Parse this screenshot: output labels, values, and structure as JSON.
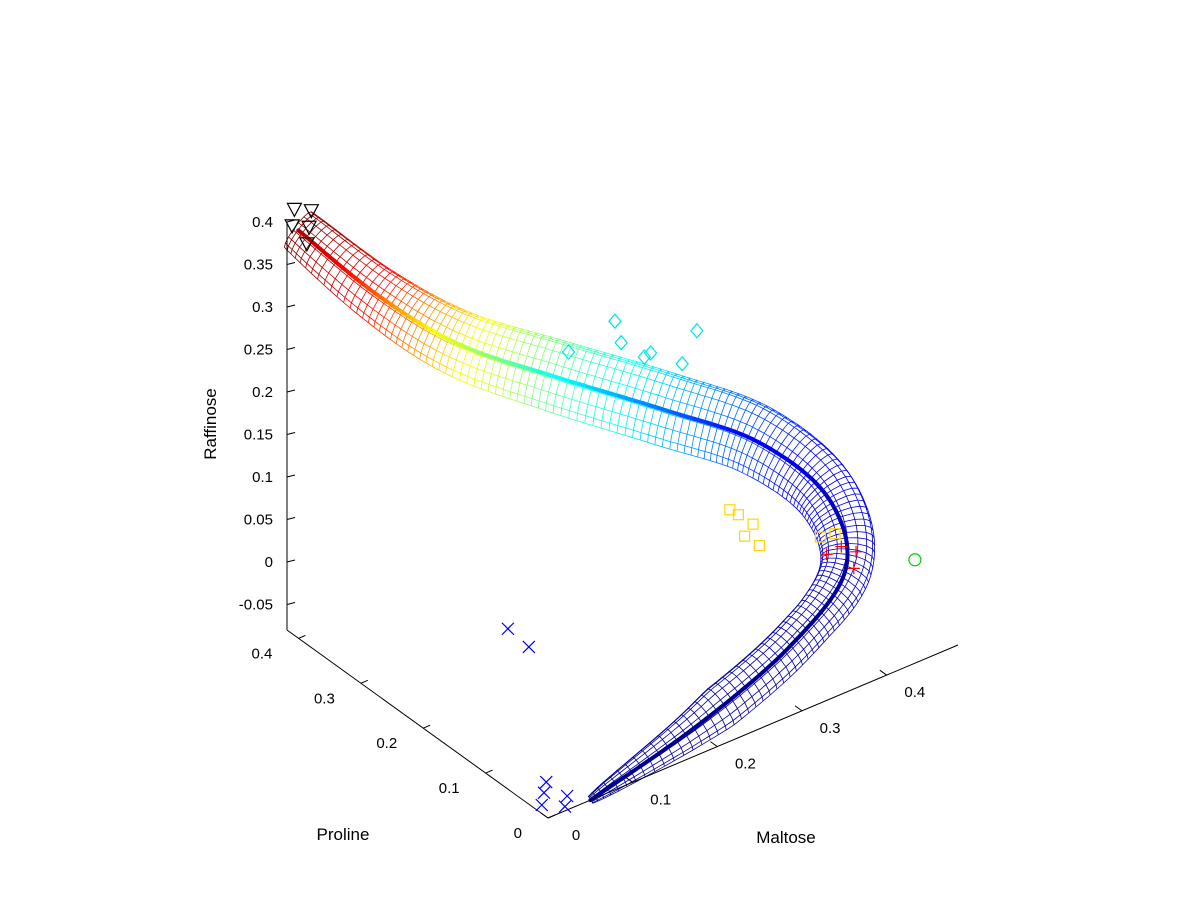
{
  "chart_data": {
    "type": "scatter",
    "subtype": "3d-scatter-with-fitted-surface",
    "title": "",
    "xlabel": "Maltose",
    "ylabel": "Proline",
    "zlabel": "Raffinose",
    "xlim": [
      0,
      0.48
    ],
    "ylim": [
      0,
      0.42
    ],
    "zlim": [
      -0.08,
      0.4
    ],
    "x_ticks": [
      "0",
      "0.1",
      "0.2",
      "0.3",
      "0.4"
    ],
    "y_ticks": [
      "0",
      "0.1",
      "0.2",
      "0.3",
      "0.4"
    ],
    "z_ticks": [
      "-0.05",
      "0",
      "0.05",
      "0.1",
      "0.15",
      "0.2",
      "0.25",
      "0.3",
      "0.35",
      "0.4"
    ],
    "z_tick_values": [
      -0.05,
      0,
      0.05,
      0.1,
      0.15,
      0.2,
      0.25,
      0.3,
      0.35,
      0.4
    ],
    "grid": false,
    "legend": "none",
    "surface": {
      "description": "wireframe tube colored by raffinose (jet colormap)",
      "colormap": [
        "#00008f",
        "#0000ff",
        "#00ffff",
        "#ffff00",
        "#ff0000",
        "#800000"
      ],
      "centerline": [
        {
          "x": 0.0,
          "y": 0.4,
          "z": 0.4
        },
        {
          "x": 0.08,
          "y": 0.38,
          "z": 0.3
        },
        {
          "x": 0.16,
          "y": 0.36,
          "z": 0.22
        },
        {
          "x": 0.26,
          "y": 0.34,
          "z": 0.15
        },
        {
          "x": 0.36,
          "y": 0.3,
          "z": 0.09
        },
        {
          "x": 0.44,
          "y": 0.26,
          "z": 0.04
        },
        {
          "x": 0.47,
          "y": 0.19,
          "z": 0.0
        },
        {
          "x": 0.44,
          "y": 0.12,
          "z": -0.035
        },
        {
          "x": 0.34,
          "y": 0.07,
          "z": -0.055
        },
        {
          "x": 0.2,
          "y": 0.03,
          "z": -0.07
        },
        {
          "x": 0.05,
          "y": 0.0,
          "z": -0.08
        }
      ]
    },
    "series": [
      {
        "marker": "x",
        "color": "#0000ff",
        "points": [
          {
            "x": 0.0,
            "y": 0.01,
            "z": -0.07
          },
          {
            "x": 0.02,
            "y": 0.0,
            "z": -0.075
          },
          {
            "x": 0.01,
            "y": 0.02,
            "z": -0.065
          },
          {
            "x": 0.03,
            "y": 0.01,
            "z": -0.072
          },
          {
            "x": 0.02,
            "y": 0.03,
            "z": -0.062
          },
          {
            "x": 0.1,
            "y": 0.2,
            "z": -0.005
          },
          {
            "x": 0.11,
            "y": 0.18,
            "z": -0.02
          }
        ]
      },
      {
        "marker": "o",
        "color": "#00cc00",
        "points": [
          {
            "x": 0.47,
            "y": 0.05,
            "z": 0.0
          }
        ]
      },
      {
        "marker": "+",
        "color": "#ff0000",
        "points": [
          {
            "x": 0.42,
            "y": 0.1,
            "z": 0.01
          },
          {
            "x": 0.41,
            "y": 0.11,
            "z": 0.0
          },
          {
            "x": 0.43,
            "y": 0.09,
            "z": 0.005
          },
          {
            "x": 0.42,
            "y": 0.08,
            "z": -0.005
          }
        ]
      },
      {
        "marker": "s",
        "color": "#ffd700",
        "points": [
          {
            "x": 0.34,
            "y": 0.17,
            "z": 0.05
          },
          {
            "x": 0.35,
            "y": 0.17,
            "z": 0.04
          },
          {
            "x": 0.36,
            "y": 0.16,
            "z": 0.03
          },
          {
            "x": 0.35,
            "y": 0.16,
            "z": 0.02
          },
          {
            "x": 0.36,
            "y": 0.15,
            "z": 0.01
          },
          {
            "x": 0.41,
            "y": 0.12,
            "z": 0.015
          },
          {
            "x": 0.42,
            "y": 0.11,
            "z": 0.02
          }
        ]
      },
      {
        "marker": "d",
        "color": "#00e5e5",
        "points": [
          {
            "x": 0.32,
            "y": 0.28,
            "z": 0.18
          },
          {
            "x": 0.35,
            "y": 0.26,
            "z": 0.17
          },
          {
            "x": 0.3,
            "y": 0.3,
            "z": 0.22
          },
          {
            "x": 0.3,
            "y": 0.29,
            "z": 0.2
          },
          {
            "x": 0.36,
            "y": 0.25,
            "z": 0.21
          },
          {
            "x": 0.32,
            "y": 0.27,
            "z": 0.19
          },
          {
            "x": 0.26,
            "y": 0.32,
            "z": 0.19
          }
        ]
      },
      {
        "marker": "v",
        "color": "#000000",
        "points": [
          {
            "x": 0.0,
            "y": 0.41,
            "z": 0.4
          },
          {
            "x": 0.01,
            "y": 0.4,
            "z": 0.38
          },
          {
            "x": 0.02,
            "y": 0.41,
            "z": 0.39
          },
          {
            "x": 0.03,
            "y": 0.42,
            "z": 0.4
          },
          {
            "x": 0.01,
            "y": 0.42,
            "z": 0.41
          }
        ]
      }
    ]
  }
}
